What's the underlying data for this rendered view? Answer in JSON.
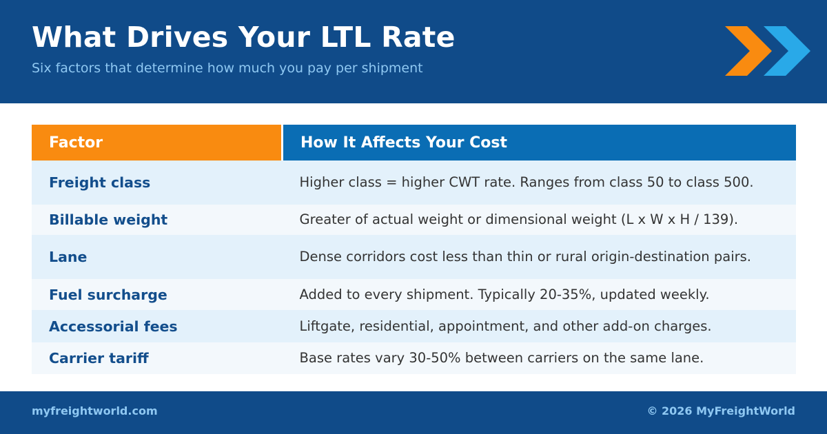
{
  "header": {
    "title": "What Drives Your LTL Rate",
    "subtitle": "Six factors that determine how much you pay per shipment"
  },
  "table": {
    "columns": [
      "Factor",
      "How It Affects Your Cost"
    ],
    "rows": [
      [
        "Freight class",
        "Higher class = higher CWT rate. Ranges from class 50 to class 500."
      ],
      [
        "Billable weight",
        "Greater of actual weight or dimensional weight (L x W x H / 139)."
      ],
      [
        "Lane",
        "Dense corridors cost less than thin or rural origin-destination pairs."
      ],
      [
        "Fuel surcharge",
        "Added to every shipment. Typically 20-35%, updated weekly."
      ],
      [
        "Accessorial fees",
        "Liftgate, residential, appointment, and other add-on charges."
      ],
      [
        "Carrier tariff",
        "Base rates vary 30-50% between carriers on the same lane."
      ]
    ]
  },
  "footer": {
    "site": "myfreightworld.com",
    "copyright": "© 2026 MyFreightWorld"
  }
}
